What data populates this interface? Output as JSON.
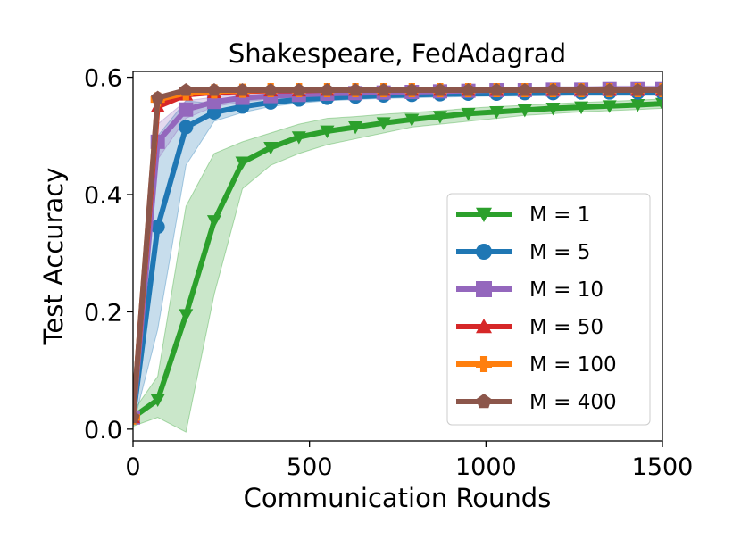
{
  "chart_data": {
    "type": "line",
    "title": "Shakespeare, FedAdagrad",
    "xlabel": "Communication Rounds",
    "ylabel": "Test Accuracy",
    "xlim": [
      0,
      1500
    ],
    "ylim": [
      -0.02,
      0.61
    ],
    "xticks": [
      0,
      500,
      1000,
      1500
    ],
    "xtick_labels": [
      "0",
      "500",
      "1000",
      "1500"
    ],
    "yticks": [
      0.0,
      0.2,
      0.4,
      0.6
    ],
    "ytick_labels": [
      "0.0",
      "0.2",
      "0.4",
      "0.6"
    ],
    "grid": false,
    "legend_position": "lower-right",
    "x": [
      0,
      70,
      150,
      230,
      310,
      390,
      470,
      550,
      630,
      710,
      790,
      870,
      950,
      1030,
      1110,
      1190,
      1270,
      1350,
      1430,
      1500
    ],
    "series": [
      {
        "name": "M = 1",
        "color": "#2ca02c",
        "marker": "triangle-down",
        "values": [
          0.02,
          0.05,
          0.195,
          0.355,
          0.455,
          0.48,
          0.498,
          0.508,
          0.515,
          0.522,
          0.528,
          0.533,
          0.538,
          0.541,
          0.544,
          0.547,
          0.549,
          0.551,
          0.553,
          0.555
        ],
        "band_low": [
          0.005,
          0.02,
          -0.005,
          0.23,
          0.41,
          0.45,
          0.47,
          0.485,
          0.495,
          0.505,
          0.515,
          0.52,
          0.525,
          0.53,
          0.535,
          0.538,
          0.541,
          0.543,
          0.545,
          0.547
        ],
        "band_high": [
          0.03,
          0.09,
          0.38,
          0.47,
          0.49,
          0.505,
          0.52,
          0.53,
          0.533,
          0.537,
          0.54,
          0.543,
          0.547,
          0.55,
          0.552,
          0.555,
          0.557,
          0.559,
          0.561,
          0.563
        ]
      },
      {
        "name": "M = 5",
        "color": "#1f77b4",
        "marker": "circle",
        "values": [
          0.02,
          0.345,
          0.515,
          0.54,
          0.55,
          0.557,
          0.562,
          0.565,
          0.567,
          0.569,
          0.57,
          0.571,
          0.572,
          0.572,
          0.573,
          0.573,
          0.574,
          0.574,
          0.574,
          0.574
        ],
        "band_low": [
          0.005,
          0.17,
          0.45,
          0.525,
          0.54,
          0.55,
          0.556,
          0.56,
          0.562,
          0.564,
          0.565,
          0.566,
          0.567,
          0.568,
          0.568,
          0.569,
          0.569,
          0.569,
          0.569,
          0.569
        ],
        "band_high": [
          0.03,
          0.5,
          0.56,
          0.555,
          0.56,
          0.565,
          0.568,
          0.57,
          0.572,
          0.573,
          0.575,
          0.576,
          0.576,
          0.577,
          0.577,
          0.578,
          0.578,
          0.578,
          0.578,
          0.578
        ]
      },
      {
        "name": "M = 10",
        "color": "#9467bd",
        "marker": "square",
        "values": [
          0.02,
          0.49,
          0.545,
          0.558,
          0.565,
          0.568,
          0.57,
          0.572,
          0.573,
          0.574,
          0.575,
          0.576,
          0.577,
          0.578,
          0.578,
          0.579,
          0.579,
          0.58,
          0.58,
          0.58
        ],
        "band_low": [
          0.01,
          0.46,
          0.53,
          0.55,
          0.558,
          0.563,
          0.566,
          0.568,
          0.569,
          0.57,
          0.571,
          0.572,
          0.573,
          0.574,
          0.574,
          0.575,
          0.575,
          0.576,
          0.576,
          0.576
        ],
        "band_high": [
          0.03,
          0.52,
          0.56,
          0.566,
          0.572,
          0.574,
          0.575,
          0.577,
          0.578,
          0.579,
          0.58,
          0.581,
          0.582,
          0.583,
          0.583,
          0.584,
          0.584,
          0.585,
          0.585,
          0.585
        ]
      },
      {
        "name": "M = 50",
        "color": "#d62728",
        "marker": "triangle-up",
        "values": [
          0.02,
          0.55,
          0.57,
          0.574,
          0.576,
          0.577,
          0.577,
          0.578,
          0.578,
          0.578,
          0.578,
          0.578,
          0.578,
          0.578,
          0.578,
          0.578,
          0.578,
          0.578,
          0.578,
          0.578
        ]
      },
      {
        "name": "M = 100",
        "color": "#ff7f0e",
        "marker": "plus",
        "values": [
          0.02,
          0.562,
          0.573,
          0.576,
          0.577,
          0.578,
          0.578,
          0.578,
          0.578,
          0.578,
          0.578,
          0.578,
          0.578,
          0.578,
          0.578,
          0.578,
          0.578,
          0.578,
          0.578,
          0.578
        ]
      },
      {
        "name": "M = 400",
        "color": "#8c564b",
        "marker": "pentagon",
        "values": [
          0.02,
          0.565,
          0.578,
          0.578,
          0.578,
          0.578,
          0.578,
          0.578,
          0.578,
          0.578,
          0.578,
          0.578,
          0.578,
          0.578,
          0.578,
          0.578,
          0.578,
          0.578,
          0.578,
          0.578
        ]
      }
    ]
  }
}
